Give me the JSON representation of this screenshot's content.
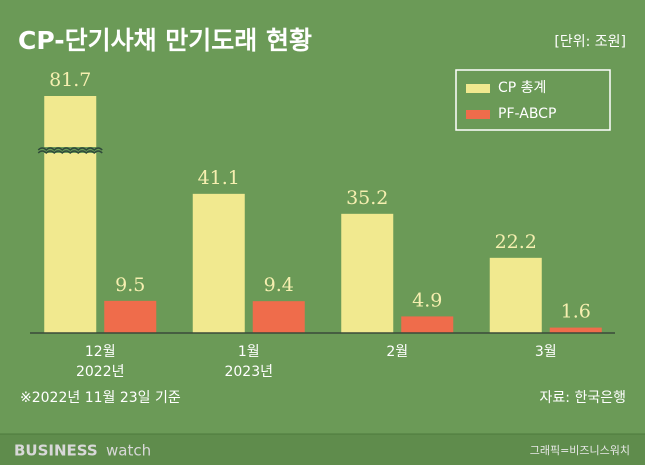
{
  "chart_data": {
    "type": "bar",
    "title": "CP-단기사채 만기도래 현황",
    "unit": "[단위: 조원]",
    "categories": [
      [
        "12월",
        "2022년"
      ],
      [
        "1월",
        "2023년"
      ],
      [
        "2월"
      ],
      [
        "3월"
      ]
    ],
    "series": [
      {
        "name": "CP 총계",
        "color": "#f1e98f",
        "values": [
          81.7,
          41.1,
          35.2,
          22.2
        ]
      },
      {
        "name": "PF-ABCP",
        "color": "#ef6c4b",
        "values": [
          9.5,
          9.4,
          4.9,
          1.6
        ]
      }
    ],
    "ylim": [
      0,
      70
    ],
    "axis_break": true,
    "note": "※2022년 11월 23일 기준",
    "source": "자료: 한국은행"
  },
  "footer": {
    "logo_bold": "BUSINESS",
    "logo_light": "watch",
    "credit": "그래픽=비즈니스워치"
  }
}
